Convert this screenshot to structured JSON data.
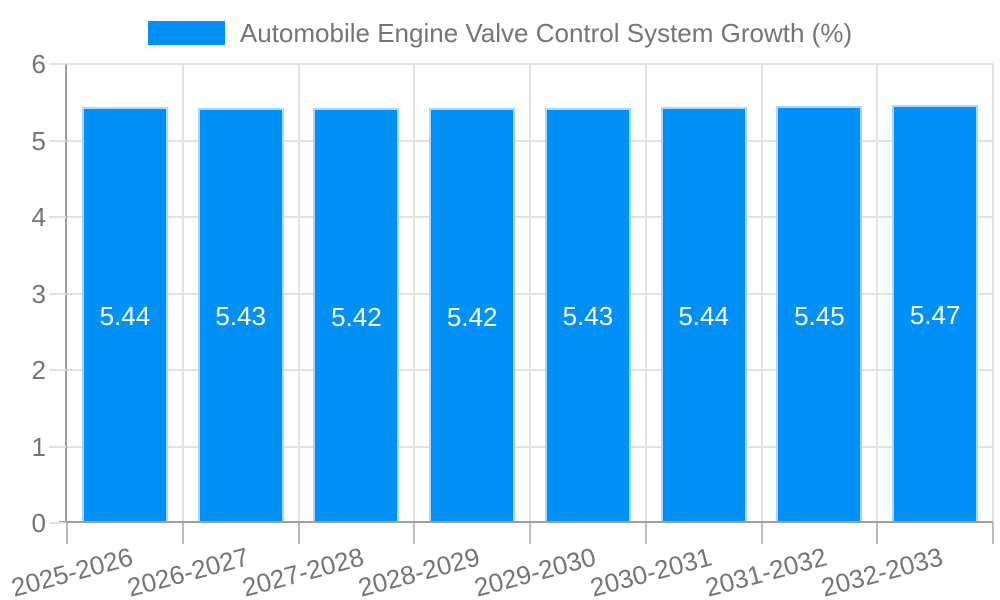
{
  "chart_data": {
    "type": "bar",
    "title": "Automobile Engine Valve Control System Growth (%)",
    "legend_position": "top",
    "categories": [
      "2025-2026",
      "2026-2027",
      "2027-2028",
      "2028-2029",
      "2029-2030",
      "2030-2031",
      "2031-2032",
      "2032-2033"
    ],
    "values": [
      5.44,
      5.43,
      5.42,
      5.42,
      5.43,
      5.44,
      5.45,
      5.47
    ],
    "value_labels": [
      "5.44",
      "5.43",
      "5.42",
      "5.42",
      "5.43",
      "5.44",
      "5.45",
      "5.47"
    ],
    "xlabel": "",
    "ylabel": "",
    "ylim": [
      0,
      6
    ],
    "yticks": [
      0,
      1,
      2,
      3,
      4,
      5,
      6
    ],
    "grid": true,
    "colors": {
      "bar_fill": "#0090f8",
      "bar_border": "#a8d8fb",
      "grid_line": "#e2e2e2",
      "axis_line": "#9e9e9e",
      "x_tick_line": "#bdbdbd",
      "axis_text": "#757575",
      "legend_text": "#757575",
      "datalabel_text": "#ffffff",
      "background": "#ffffff"
    }
  }
}
